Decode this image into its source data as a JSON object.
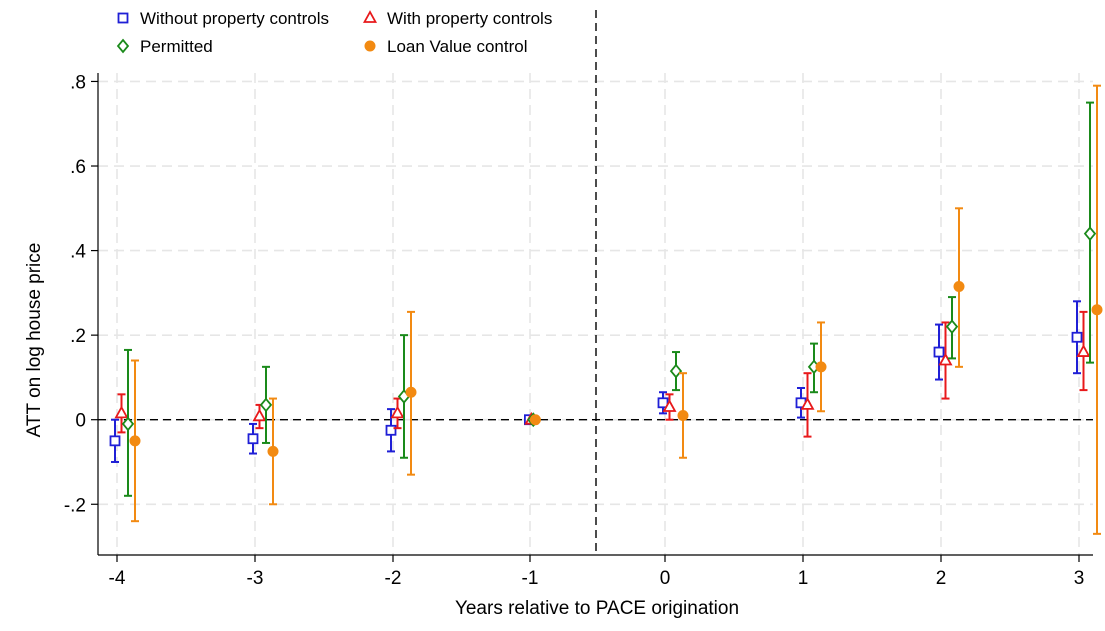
{
  "chart_data": {
    "type": "scatter",
    "title": "",
    "xlabel": "Years relative to PACE origination",
    "ylabel": "ATT on log house price",
    "x_categories": [
      -4,
      -3,
      -2,
      -1,
      0,
      1,
      2,
      3
    ],
    "x_tick_labels": [
      "-4",
      "-3",
      "-2",
      "-1",
      "0",
      "1",
      "2",
      "3"
    ],
    "ylim": [
      -0.32,
      0.82
    ],
    "y_ticks": [
      -0.2,
      0,
      0.2,
      0.4,
      0.6,
      0.8
    ],
    "y_tick_labels": [
      "-.2",
      "0",
      ".2",
      ".4",
      ".6",
      ".8"
    ],
    "grid": true,
    "reference_lines": {
      "y": 0,
      "x": -0.5
    },
    "legend_position": "top-left",
    "series": [
      {
        "name": "Without property controls",
        "marker": "hollow-square",
        "color": "#1f1fd6",
        "x": [
          -4,
          -3,
          -2,
          -1,
          0,
          1,
          2,
          3
        ],
        "y": [
          -0.05,
          -0.045,
          -0.025,
          0.0,
          0.04,
          0.04,
          0.16,
          0.195
        ],
        "ci_low": [
          -0.1,
          -0.08,
          -0.075,
          0.0,
          0.015,
          0.005,
          0.095,
          0.11
        ],
        "ci_high": [
          0.0,
          -0.01,
          0.025,
          0.0,
          0.065,
          0.075,
          0.225,
          0.28
        ]
      },
      {
        "name": "With property controls",
        "marker": "hollow-triangle",
        "color": "#e8191b",
        "x": [
          -4,
          -3,
          -2,
          -1,
          0,
          1,
          2,
          3
        ],
        "y": [
          0.015,
          0.008,
          0.015,
          0.0,
          0.03,
          0.035,
          0.14,
          0.16
        ],
        "ci_low": [
          -0.03,
          -0.02,
          -0.02,
          0.0,
          0.0,
          -0.04,
          0.05,
          0.07
        ],
        "ci_high": [
          0.06,
          0.035,
          0.05,
          0.0,
          0.06,
          0.11,
          0.23,
          0.255
        ]
      },
      {
        "name": "Permitted",
        "marker": "hollow-diamond",
        "color": "#1a8a1a",
        "x": [
          -4,
          -3,
          -2,
          -1,
          0,
          1,
          2,
          3
        ],
        "y": [
          -0.01,
          0.035,
          0.055,
          0.0,
          0.115,
          0.125,
          0.22,
          0.44
        ],
        "ci_low": [
          -0.18,
          -0.055,
          -0.09,
          0.0,
          0.07,
          0.065,
          0.145,
          0.135
        ],
        "ci_high": [
          0.165,
          0.125,
          0.2,
          0.0,
          0.16,
          0.18,
          0.29,
          0.75
        ]
      },
      {
        "name": "Loan Value control",
        "marker": "filled-circle",
        "color": "#f28a12",
        "x": [
          -4,
          -3,
          -2,
          -1,
          0,
          1,
          2,
          3
        ],
        "y": [
          -0.05,
          -0.075,
          0.065,
          0.0,
          0.01,
          0.125,
          0.315,
          0.26
        ],
        "ci_low": [
          -0.24,
          -0.2,
          -0.13,
          0.0,
          -0.09,
          0.02,
          0.125,
          -0.27
        ],
        "ci_high": [
          0.14,
          0.05,
          0.255,
          0.0,
          0.11,
          0.23,
          0.5,
          0.79
        ]
      }
    ]
  }
}
